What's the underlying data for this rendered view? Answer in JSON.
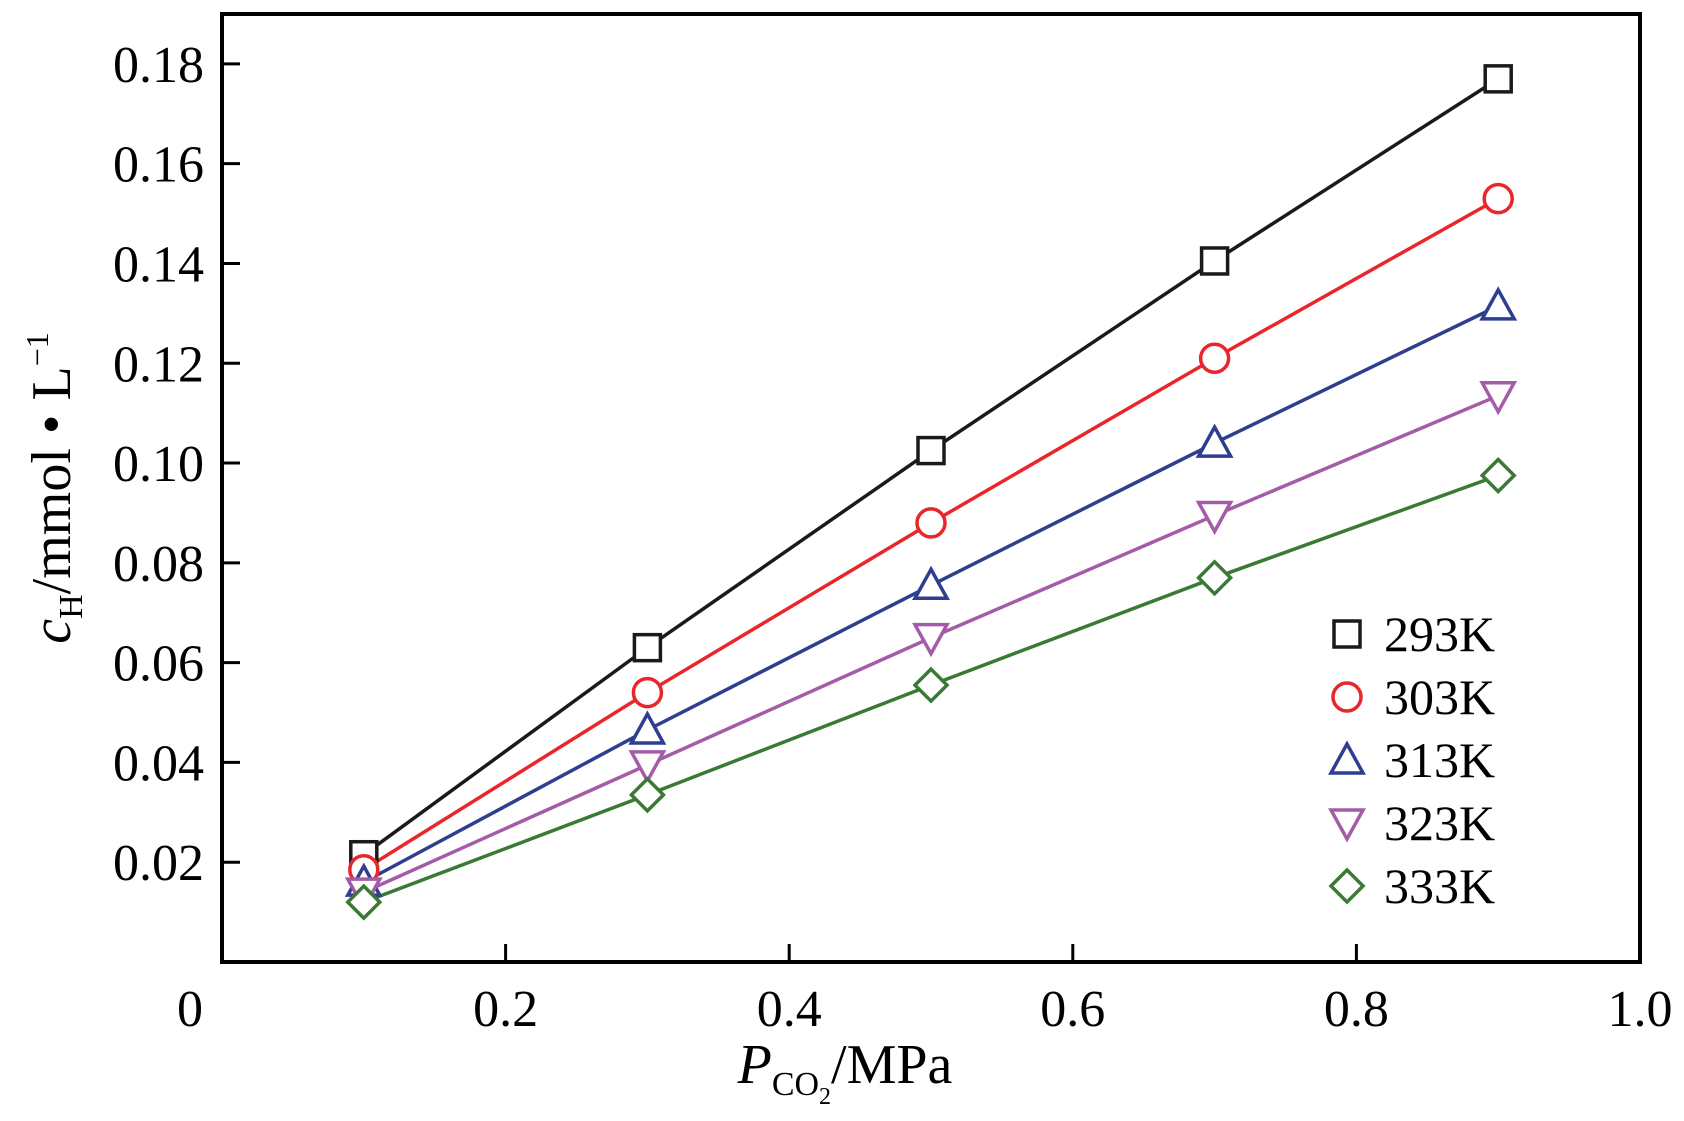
{
  "chart_data": {
    "type": "line",
    "title": "",
    "xlabel": {
      "main": "P",
      "sub": "CO",
      "subsub": "2",
      "unit": "/MPa"
    },
    "ylabel": {
      "main": "c",
      "sub": "H",
      "unit": "/mmol • L",
      "sup": "−1"
    },
    "xlim": [
      0,
      1.0
    ],
    "ylim": [
      0,
      0.19
    ],
    "xticks": [
      0,
      0.2,
      0.4,
      0.6,
      0.8,
      1.0
    ],
    "xtick_labels": [
      "0",
      "0.2",
      "0.4",
      "0.6",
      "0.8",
      "1.0"
    ],
    "yticks": [
      0.02,
      0.04,
      0.06,
      0.08,
      0.1,
      0.12,
      0.14,
      0.16,
      0.18
    ],
    "ytick_labels": [
      "0.02",
      "0.04",
      "0.06",
      "0.08",
      "0.10",
      "0.12",
      "0.14",
      "0.16",
      "0.18"
    ],
    "grid": false,
    "legend_position": "bottom-right",
    "x": [
      0.1,
      0.3,
      0.5,
      0.7,
      0.9
    ],
    "series": [
      {
        "name": "293K",
        "marker": "square",
        "color": "#1a1a1a",
        "values": [
          0.0215,
          0.063,
          0.1025,
          0.1405,
          0.177
        ]
      },
      {
        "name": "303K",
        "marker": "circle",
        "color": "#e8262b",
        "values": [
          0.0185,
          0.054,
          0.088,
          0.121,
          0.153
        ]
      },
      {
        "name": "313K",
        "marker": "triangle-up",
        "color": "#2f3e8f",
        "values": [
          0.016,
          0.0465,
          0.0755,
          0.104,
          0.1315
        ]
      },
      {
        "name": "323K",
        "marker": "triangle-down",
        "color": "#a45ca8",
        "values": [
          0.014,
          0.0395,
          0.065,
          0.0895,
          0.1135
        ]
      },
      {
        "name": "333K",
        "marker": "diamond",
        "color": "#3a7a34",
        "values": [
          0.012,
          0.0335,
          0.0555,
          0.077,
          0.0975
        ]
      }
    ]
  }
}
